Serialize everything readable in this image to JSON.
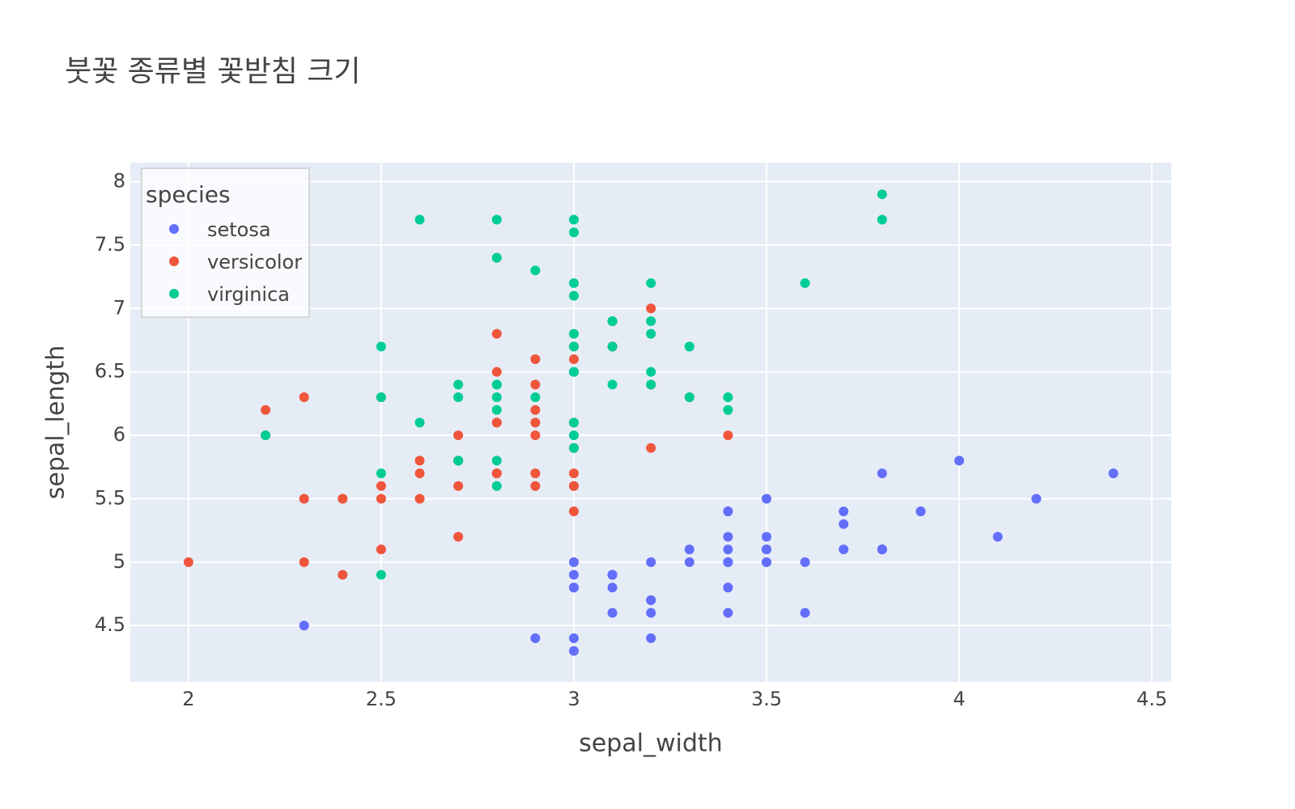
{
  "chart_data": {
    "type": "scatter",
    "title": "붓꽃 종류별 꽃받침 크기",
    "x_label": "sepal_width",
    "y_label": "sepal_length",
    "legend_title": "species",
    "legend_position": "top-left",
    "grid": true,
    "xlim": [
      1.849,
      4.55
    ],
    "ylim": [
      4.055,
      8.15
    ],
    "xticks": [
      2,
      2.5,
      3,
      3.5,
      4,
      4.5
    ],
    "yticks": [
      4.5,
      5,
      5.5,
      6,
      6.5,
      7,
      7.5,
      8
    ],
    "series": [
      {
        "name": "setosa",
        "color": "#636efa",
        "x": [
          3.5,
          3.0,
          3.2,
          3.1,
          3.6,
          3.9,
          3.4,
          3.4,
          2.9,
          3.1,
          3.7,
          3.4,
          3.0,
          3.0,
          4.0,
          4.4,
          3.9,
          3.5,
          3.8,
          3.8,
          3.4,
          3.7,
          3.6,
          3.3,
          3.4,
          3.0,
          3.4,
          3.5,
          3.4,
          3.2,
          3.1,
          3.4,
          4.1,
          4.2,
          3.1,
          3.2,
          3.5,
          3.1,
          3.0,
          3.4,
          3.5,
          2.3,
          3.2,
          3.5,
          3.8,
          3.0,
          3.8,
          3.2,
          3.7,
          3.3
        ],
        "values": [
          5.1,
          4.9,
          4.7,
          4.6,
          5.0,
          5.4,
          4.6,
          5.0,
          4.4,
          4.9,
          5.4,
          4.8,
          4.8,
          4.3,
          5.8,
          5.7,
          5.4,
          5.1,
          5.7,
          5.1,
          5.4,
          5.1,
          4.6,
          5.1,
          4.8,
          5.0,
          5.0,
          5.2,
          5.2,
          4.7,
          4.8,
          5.4,
          5.2,
          5.5,
          4.9,
          5.0,
          5.5,
          4.9,
          4.4,
          5.1,
          5.0,
          4.5,
          4.4,
          5.0,
          5.1,
          4.8,
          5.1,
          4.6,
          5.3,
          5.0
        ]
      },
      {
        "name": "versicolor",
        "color": "#EF553B",
        "x": [
          3.2,
          3.2,
          3.1,
          2.3,
          2.8,
          2.8,
          3.3,
          2.4,
          2.9,
          2.7,
          2.0,
          3.0,
          2.2,
          2.9,
          2.9,
          3.1,
          3.0,
          2.7,
          2.2,
          2.5,
          3.2,
          2.8,
          2.5,
          2.8,
          2.9,
          3.0,
          2.8,
          3.0,
          2.9,
          2.6,
          2.4,
          2.4,
          2.7,
          2.7,
          3.0,
          3.4,
          3.1,
          2.3,
          3.0,
          2.5,
          2.6,
          3.0,
          2.6,
          2.3,
          2.7,
          3.0,
          2.9,
          2.9,
          2.5,
          2.8
        ],
        "values": [
          7.0,
          6.4,
          6.9,
          5.5,
          6.5,
          5.7,
          6.3,
          4.9,
          6.6,
          5.2,
          5.0,
          5.9,
          6.0,
          6.1,
          5.6,
          6.7,
          5.6,
          5.8,
          6.2,
          5.6,
          5.9,
          6.1,
          6.3,
          6.1,
          6.4,
          6.6,
          6.8,
          6.7,
          6.0,
          5.7,
          5.5,
          5.5,
          5.8,
          6.0,
          5.4,
          6.0,
          6.7,
          6.3,
          5.6,
          5.5,
          5.5,
          6.1,
          5.8,
          5.0,
          5.6,
          5.7,
          5.7,
          6.2,
          5.1,
          5.7
        ]
      },
      {
        "name": "virginica",
        "color": "#00cc96",
        "x": [
          3.3,
          2.7,
          3.0,
          2.9,
          3.0,
          3.0,
          2.5,
          2.9,
          2.5,
          3.6,
          3.2,
          2.7,
          3.0,
          2.5,
          2.8,
          3.2,
          3.0,
          3.8,
          2.6,
          2.2,
          3.2,
          2.8,
          2.8,
          2.7,
          3.3,
          3.2,
          2.8,
          3.0,
          2.8,
          3.0,
          2.8,
          3.8,
          2.8,
          2.8,
          2.6,
          3.0,
          3.4,
          3.1,
          3.0,
          3.1,
          3.1,
          3.1,
          2.7,
          3.2,
          3.3,
          3.0,
          2.5,
          3.0,
          3.4,
          3.0
        ],
        "values": [
          6.3,
          5.8,
          7.1,
          6.3,
          6.5,
          7.6,
          4.9,
          7.3,
          6.7,
          7.2,
          6.5,
          6.4,
          6.8,
          5.7,
          5.8,
          6.4,
          6.5,
          7.7,
          7.7,
          6.0,
          6.9,
          5.6,
          7.7,
          6.3,
          6.7,
          7.2,
          6.2,
          6.1,
          6.4,
          7.2,
          7.4,
          7.9,
          6.4,
          6.3,
          6.1,
          7.7,
          6.3,
          6.4,
          6.0,
          6.9,
          6.7,
          6.9,
          5.8,
          6.8,
          6.7,
          6.7,
          6.3,
          6.5,
          6.2,
          5.9
        ]
      }
    ]
  }
}
